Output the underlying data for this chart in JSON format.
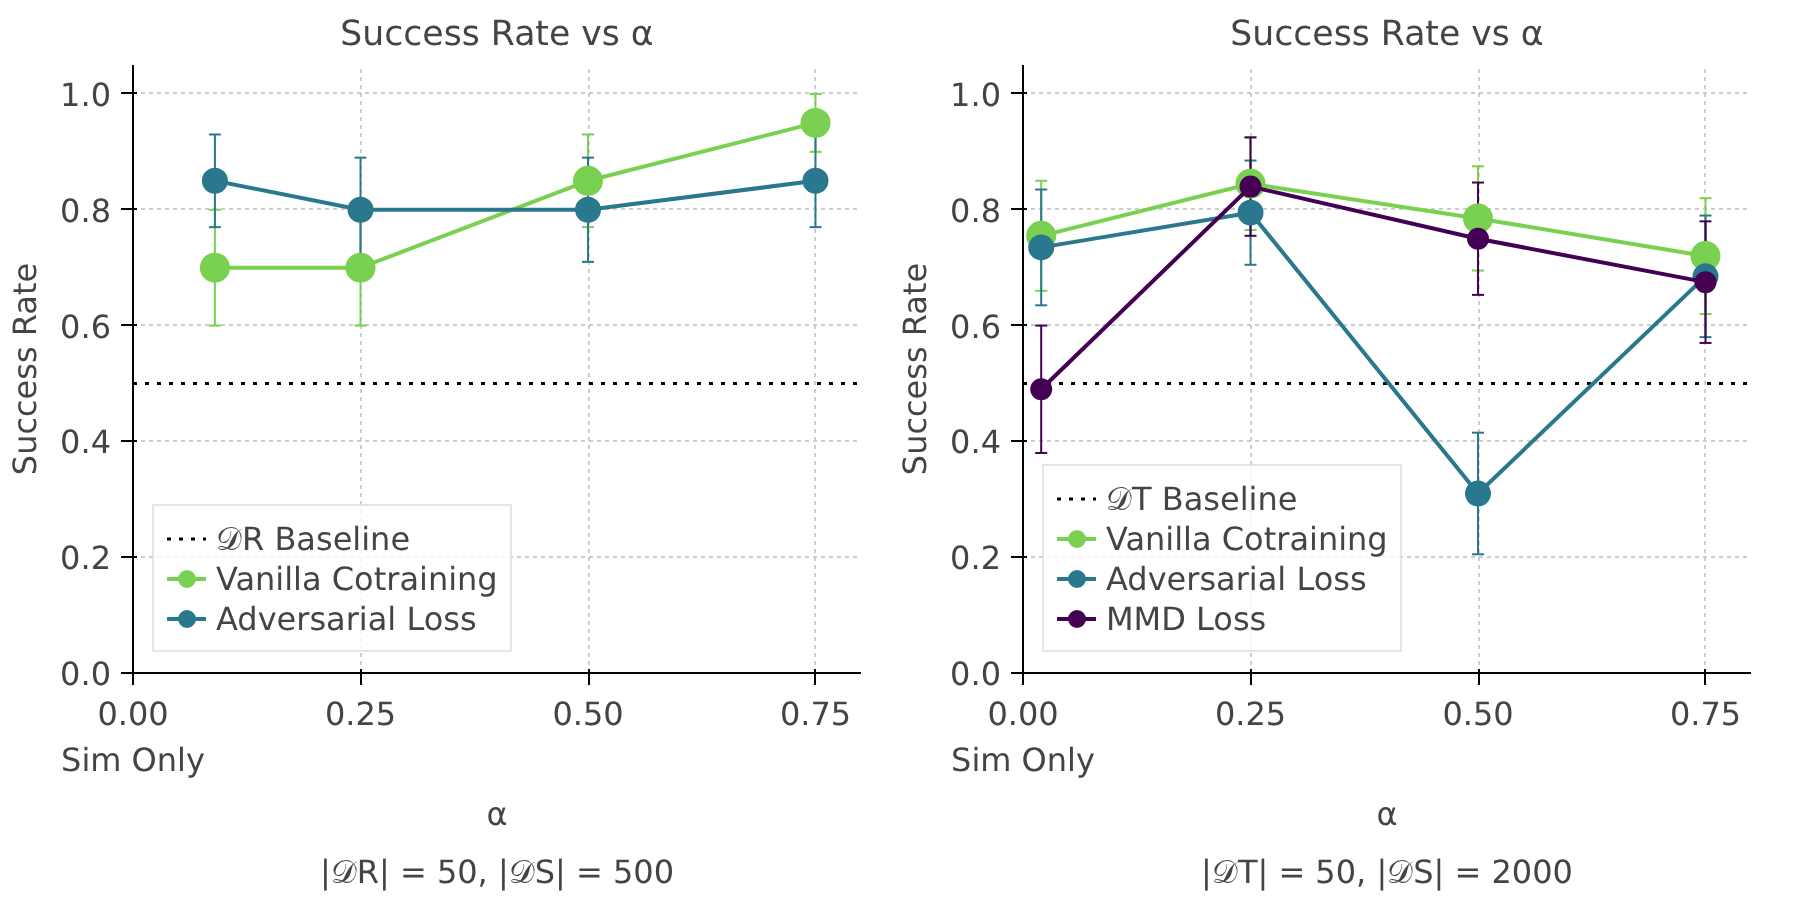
{
  "chart_data": [
    {
      "type": "line",
      "title": "Success Rate vs α",
      "xlabel": "α",
      "ylabel": "Success Rate",
      "annotations": [
        "|𝒟R| = 50, |𝒟S| = 500"
      ],
      "xlim": [
        0,
        0.8
      ],
      "ylim": [
        0,
        1.05
      ],
      "xticks": [
        {
          "value": 0,
          "label": "0.00\nSim Only"
        },
        {
          "value": 0.25,
          "label": "0.25"
        },
        {
          "value": 0.5,
          "label": "0.50"
        },
        {
          "value": 0.75,
          "label": "0.75"
        }
      ],
      "yticks": [
        {
          "value": 0,
          "label": "0.0"
        },
        {
          "value": 0.2,
          "label": "0.2"
        },
        {
          "value": 0.4,
          "label": "0.4"
        },
        {
          "value": 0.6,
          "label": "0.6"
        },
        {
          "value": 0.8,
          "label": "0.8"
        },
        {
          "value": 1.0,
          "label": "1.0"
        }
      ],
      "x": [
        0.09,
        0.25,
        0.5,
        0.75
      ],
      "series": [
        {
          "name": "Vanilla Cotraining",
          "color": "#7ad151",
          "values": [
            0.7,
            0.7,
            0.85,
            0.95
          ],
          "errors": [
            0.1,
            0.1,
            0.08,
            0.05
          ]
        },
        {
          "name": "Adversarial Loss",
          "color": "#2a788e",
          "values": [
            0.85,
            0.8,
            0.8,
            0.85
          ],
          "errors": [
            0.08,
            0.09,
            0.09,
            0.08
          ]
        }
      ],
      "ref_lines": [
        {
          "axis": "y",
          "value": 0.5,
          "label": "𝒟R Baseline",
          "color": "#000000",
          "line_style": "dotted"
        }
      ],
      "grid": true,
      "legend": "bottom left",
      "marker": "circle",
      "line_style": "solid"
    },
    {
      "type": "line",
      "title": "Success Rate vs α",
      "xlabel": "α",
      "ylabel": "Success Rate",
      "annotations": [
        "|𝒟T| = 50, |𝒟S| = 2000"
      ],
      "xlim": [
        0,
        0.8
      ],
      "ylim": [
        0,
        1.05
      ],
      "xticks": [
        {
          "value": 0,
          "label": "0.00\nSim Only"
        },
        {
          "value": 0.25,
          "label": "0.25"
        },
        {
          "value": 0.5,
          "label": "0.50"
        },
        {
          "value": 0.75,
          "label": "0.75"
        }
      ],
      "yticks": [
        {
          "value": 0,
          "label": "0.0"
        },
        {
          "value": 0.2,
          "label": "0.2"
        },
        {
          "value": 0.4,
          "label": "0.4"
        },
        {
          "value": 0.6,
          "label": "0.6"
        },
        {
          "value": 0.8,
          "label": "0.8"
        },
        {
          "value": 1.0,
          "label": "1.0"
        }
      ],
      "x": [
        0.02,
        0.25,
        0.5,
        0.75
      ],
      "series": [
        {
          "name": "Vanilla Cotraining",
          "color": "#7ad151",
          "values": [
            0.755,
            0.845,
            0.785,
            0.72
          ],
          "errors": [
            0.095,
            0.08,
            0.09,
            0.1
          ]
        },
        {
          "name": "Adversarial Loss",
          "color": "#2a788e",
          "values": [
            0.735,
            0.795,
            0.31,
            0.685
          ],
          "errors": [
            0.1,
            0.09,
            0.105,
            0.105
          ]
        },
        {
          "name": "MMD Loss",
          "color": "#440154",
          "values": [
            0.49,
            0.84,
            0.75,
            0.675
          ],
          "errors": [
            0.11,
            0.085,
            0.097,
            0.105
          ]
        }
      ],
      "ref_lines": [
        {
          "axis": "y",
          "value": 0.5,
          "label": "𝒟T Baseline",
          "color": "#000000",
          "line_style": "dotted"
        }
      ],
      "grid": true,
      "legend": "bottom left",
      "marker": "circle",
      "line_style": "solid"
    }
  ]
}
